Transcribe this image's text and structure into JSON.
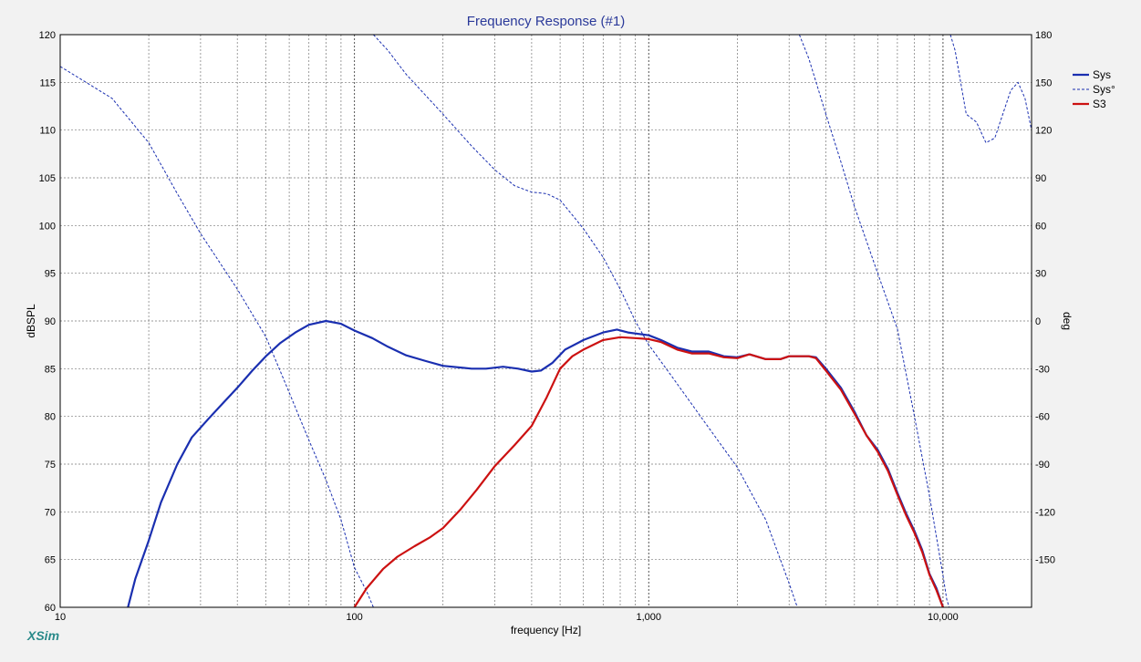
{
  "chart_data": {
    "type": "line",
    "title": "Frequency Response (#1)",
    "xlabel": "frequency [Hz]",
    "ylabel": "dBSPL",
    "y2label": "deg",
    "watermark": "XSim",
    "x_scale": "log",
    "xlim": [
      10,
      20000
    ],
    "ylim": [
      60,
      120
    ],
    "y2lim": [
      -180,
      180
    ],
    "x_ticks": [
      {
        "value": 10,
        "label": "10"
      },
      {
        "value": 100,
        "label": "100"
      },
      {
        "value": 1000,
        "label": "1,000"
      },
      {
        "value": 10000,
        "label": "10,000"
      }
    ],
    "y_ticks": [
      {
        "value": 60,
        "label": "60"
      },
      {
        "value": 65,
        "label": "65"
      },
      {
        "value": 70,
        "label": "70"
      },
      {
        "value": 75,
        "label": "75"
      },
      {
        "value": 80,
        "label": "80"
      },
      {
        "value": 85,
        "label": "85"
      },
      {
        "value": 90,
        "label": "90"
      },
      {
        "value": 95,
        "label": "95"
      },
      {
        "value": 100,
        "label": "100"
      },
      {
        "value": 105,
        "label": "105"
      },
      {
        "value": 110,
        "label": "110"
      },
      {
        "value": 115,
        "label": "115"
      },
      {
        "value": 120,
        "label": "120"
      }
    ],
    "y2_ticks": [
      {
        "value": 180,
        "label": "180"
      },
      {
        "value": 150,
        "label": "150"
      },
      {
        "value": 120,
        "label": "120"
      },
      {
        "value": 90,
        "label": "90"
      },
      {
        "value": 60,
        "label": "60"
      },
      {
        "value": 30,
        "label": "30"
      },
      {
        "value": 0,
        "label": "0"
      },
      {
        "value": -30,
        "label": "-30"
      },
      {
        "value": -60,
        "label": "-60"
      },
      {
        "value": -90,
        "label": "-90"
      },
      {
        "value": -120,
        "label": "-120"
      },
      {
        "value": -150,
        "label": "-150"
      }
    ],
    "grid": true,
    "legend_position": "right",
    "series": [
      {
        "name": "Sys",
        "axis": "left",
        "color": "#1a2fb0",
        "style": "solid",
        "points": [
          [
            17,
            60
          ],
          [
            18,
            63
          ],
          [
            20,
            67
          ],
          [
            22,
            71
          ],
          [
            25,
            75
          ],
          [
            28,
            77.8
          ],
          [
            32,
            79.8
          ],
          [
            36,
            81.5
          ],
          [
            40,
            83
          ],
          [
            45,
            84.8
          ],
          [
            50,
            86.3
          ],
          [
            56,
            87.7
          ],
          [
            63,
            88.8
          ],
          [
            70,
            89.6
          ],
          [
            80,
            90
          ],
          [
            90,
            89.7
          ],
          [
            100,
            89
          ],
          [
            115,
            88.2
          ],
          [
            130,
            87.3
          ],
          [
            150,
            86.4
          ],
          [
            175,
            85.8
          ],
          [
            200,
            85.3
          ],
          [
            250,
            85
          ],
          [
            280,
            85
          ],
          [
            320,
            85.2
          ],
          [
            360,
            85
          ],
          [
            400,
            84.7
          ],
          [
            430,
            84.8
          ],
          [
            470,
            85.6
          ],
          [
            520,
            87
          ],
          [
            600,
            88
          ],
          [
            700,
            88.8
          ],
          [
            780,
            89.1
          ],
          [
            850,
            88.8
          ],
          [
            1000,
            88.5
          ],
          [
            1100,
            88
          ],
          [
            1250,
            87.2
          ],
          [
            1400,
            86.8
          ],
          [
            1600,
            86.8
          ],
          [
            1800,
            86.3
          ],
          [
            2000,
            86.2
          ],
          [
            2200,
            86.5
          ],
          [
            2500,
            86
          ],
          [
            2800,
            86
          ],
          [
            3000,
            86.3
          ],
          [
            3500,
            86.3
          ],
          [
            3700,
            86.2
          ],
          [
            4000,
            85
          ],
          [
            4500,
            83
          ],
          [
            5000,
            80.5
          ],
          [
            5500,
            78
          ],
          [
            6000,
            76.5
          ],
          [
            6500,
            74.5
          ],
          [
            7000,
            72
          ],
          [
            7500,
            69.8
          ],
          [
            8000,
            68
          ],
          [
            8500,
            66
          ],
          [
            9000,
            63.5
          ],
          [
            9500,
            62
          ],
          [
            10000,
            60
          ]
        ]
      },
      {
        "name": "Sys°",
        "axis": "right",
        "color": "#1a2fb0",
        "style": "dashed",
        "points": [
          [
            10,
            160
          ],
          [
            15,
            140
          ],
          [
            20,
            112
          ],
          [
            25,
            80
          ],
          [
            30,
            55
          ],
          [
            40,
            20
          ],
          [
            50,
            -10
          ],
          [
            60,
            -45
          ],
          [
            70,
            -75
          ],
          [
            80,
            -100
          ],
          [
            90,
            -125
          ],
          [
            100,
            -155
          ],
          [
            110,
            -170
          ],
          [
            116,
            -180
          ],
          null,
          [
            116,
            180
          ],
          [
            130,
            170
          ],
          [
            150,
            155
          ],
          [
            200,
            130
          ],
          [
            250,
            110
          ],
          [
            300,
            95
          ],
          [
            350,
            85
          ],
          [
            400,
            81
          ],
          [
            450,
            80
          ],
          [
            500,
            76
          ],
          [
            600,
            58
          ],
          [
            700,
            40
          ],
          [
            800,
            20
          ],
          [
            900,
            0
          ],
          [
            1000,
            -15
          ],
          [
            1200,
            -35
          ],
          [
            1500,
            -60
          ],
          [
            2000,
            -92
          ],
          [
            2500,
            -125
          ],
          [
            3000,
            -165
          ],
          [
            3200,
            -180
          ],
          null,
          [
            3250,
            180
          ],
          [
            3500,
            165
          ],
          [
            4000,
            130
          ],
          [
            4500,
            100
          ],
          [
            5000,
            72
          ],
          [
            6000,
            30
          ],
          [
            7000,
            -5
          ],
          [
            8000,
            -60
          ],
          [
            9000,
            -110
          ],
          [
            10000,
            -160
          ],
          [
            10300,
            -175
          ],
          [
            10500,
            -180
          ],
          null,
          [
            10600,
            180
          ],
          [
            11000,
            170
          ],
          [
            12000,
            130
          ],
          [
            13000,
            125
          ],
          [
            14000,
            112
          ],
          [
            15000,
            115
          ],
          [
            17000,
            145
          ],
          [
            18000,
            150
          ],
          [
            19000,
            140
          ],
          [
            20000,
            120
          ]
        ]
      },
      {
        "name": "S3",
        "axis": "left",
        "color": "#cc1111",
        "style": "solid",
        "points": [
          [
            100,
            60
          ],
          [
            110,
            62
          ],
          [
            125,
            64
          ],
          [
            140,
            65.3
          ],
          [
            160,
            66.4
          ],
          [
            180,
            67.3
          ],
          [
            200,
            68.3
          ],
          [
            230,
            70.3
          ],
          [
            260,
            72.3
          ],
          [
            300,
            74.8
          ],
          [
            350,
            77
          ],
          [
            400,
            79
          ],
          [
            450,
            82
          ],
          [
            500,
            85
          ],
          [
            550,
            86.3
          ],
          [
            600,
            87
          ],
          [
            700,
            88
          ],
          [
            800,
            88.3
          ],
          [
            900,
            88.2
          ],
          [
            1000,
            88.1
          ],
          [
            1100,
            87.8
          ],
          [
            1250,
            87
          ],
          [
            1400,
            86.6
          ],
          [
            1600,
            86.6
          ],
          [
            1800,
            86.2
          ],
          [
            2000,
            86.1
          ],
          [
            2200,
            86.5
          ],
          [
            2500,
            86
          ],
          [
            2800,
            86
          ],
          [
            3000,
            86.3
          ],
          [
            3500,
            86.3
          ],
          [
            3700,
            86.1
          ],
          [
            4000,
            84.8
          ],
          [
            4500,
            82.8
          ],
          [
            5000,
            80.3
          ],
          [
            5500,
            78
          ],
          [
            6000,
            76.3
          ],
          [
            6500,
            74.3
          ],
          [
            7000,
            71.8
          ],
          [
            7500,
            69.6
          ],
          [
            8000,
            67.8
          ],
          [
            8500,
            65.8
          ],
          [
            9000,
            63.4
          ],
          [
            9500,
            61.8
          ],
          [
            10000,
            60
          ]
        ]
      }
    ]
  }
}
